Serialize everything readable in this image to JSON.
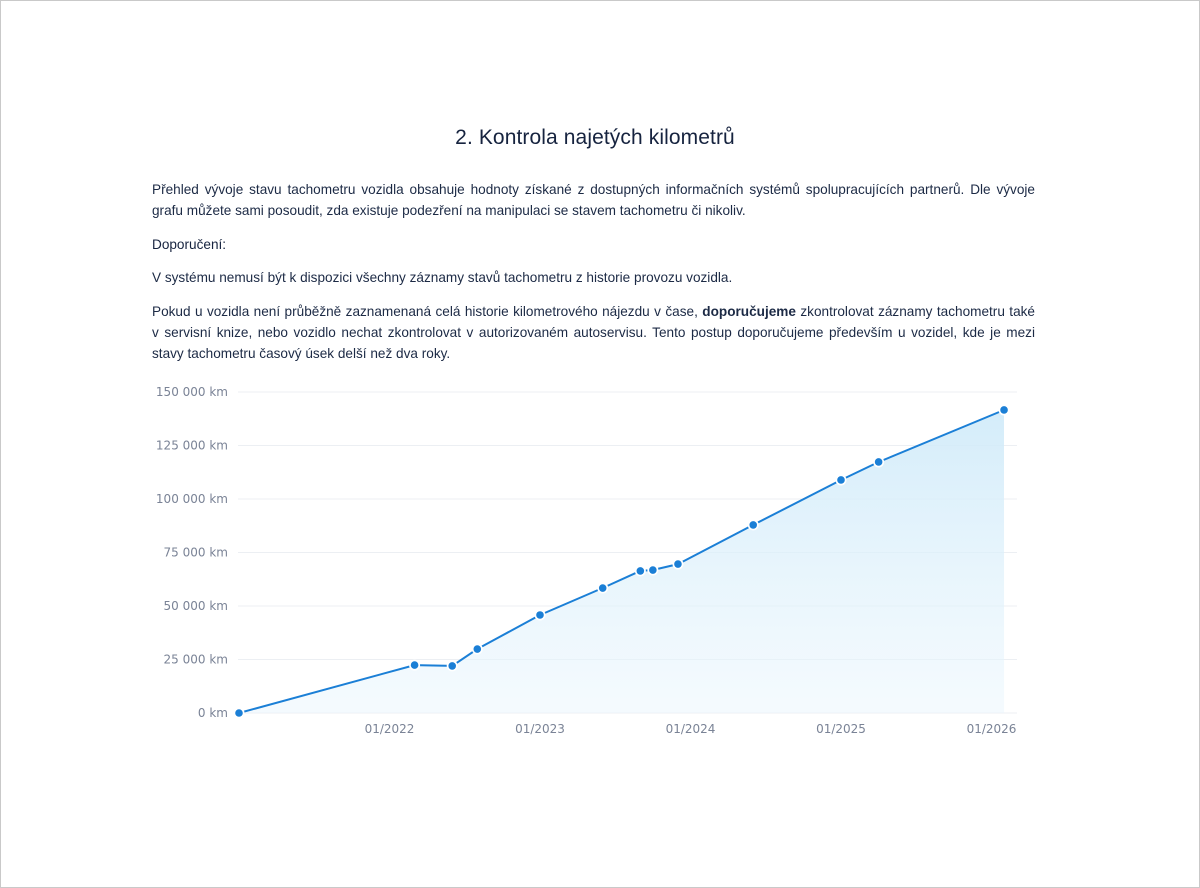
{
  "section": {
    "title": "2. Kontrola najetých kilometrů",
    "intro": "Přehled vývoje stavu tachometru vozidla obsahuje hodnoty získané z dostupných informačních systémů spolupracujících partnerů. Dle vývoje grafu můžete sami posoudit, zda existuje podezření na manipulaci se stavem tachometru či nikoliv.",
    "recommendation_heading": "Doporučení:",
    "note": "V systému nemusí být k dispozici všechny záznamy stavů tachometru z historie provozu vozidla.",
    "advice_before": "Pokud u vozidla není průběžně zaznamenaná celá historie kilometrového nájezdu v čase, ",
    "advice_bold": "doporučujeme",
    "advice_after": " zkontrolovat záznamy tachometru také v servisní knize, nebo vozidlo nechat zkontrolovat v autorizovaném autoservisu. Tento postup doporučujeme především u vozidel, kde je mezi stavy tachometru časový úsek delší než dva roky."
  },
  "chart_data": {
    "type": "area",
    "title": "",
    "xlabel": "",
    "ylabel": "",
    "ylim": [
      0,
      150000
    ],
    "xlim": [
      "2021-01",
      "2026-03"
    ],
    "grid": true,
    "y_ticks": [
      "0 km",
      "25 000 km",
      "50 000 km",
      "75 000 km",
      "100 000 km",
      "125 000 km",
      "150 000 km"
    ],
    "y_tick_values": [
      0,
      25000,
      50000,
      75000,
      100000,
      125000,
      150000
    ],
    "x_ticks": [
      "01/2022",
      "01/2023",
      "01/2024",
      "01/2025",
      "01/2026"
    ],
    "x_tick_values": [
      "2022-01",
      "2023-01",
      "2024-01",
      "2025-01",
      "2026-01"
    ],
    "colors": {
      "line": "#1b7fd6",
      "fill": "#d9effb",
      "grid": "#eceff3"
    },
    "series": [
      {
        "points": [
          {
            "x": "2021-01",
            "y": 0
          },
          {
            "x": "2022-03",
            "y": 22400
          },
          {
            "x": "2022-06",
            "y": 22000
          },
          {
            "x": "2022-08",
            "y": 29900
          },
          {
            "x": "2023-01",
            "y": 45800
          },
          {
            "x": "2023-06",
            "y": 58400
          },
          {
            "x": "2023-09",
            "y": 66400
          },
          {
            "x": "2023-10",
            "y": 66800
          },
          {
            "x": "2023-12",
            "y": 69600
          },
          {
            "x": "2024-06",
            "y": 87900
          },
          {
            "x": "2025-01",
            "y": 108900
          },
          {
            "x": "2025-04",
            "y": 117300
          },
          {
            "x": "2026-02",
            "y": 141600
          }
        ]
      }
    ]
  }
}
